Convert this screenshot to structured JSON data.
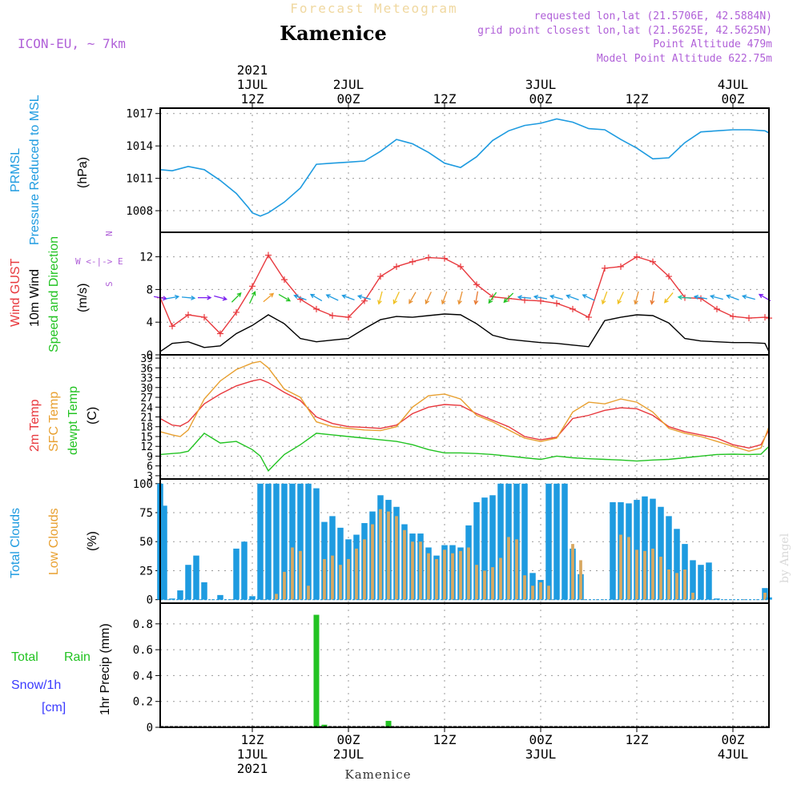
{
  "header": {
    "meteogram_title": "Forecast Meteogram",
    "location": "Kamenice",
    "model": "ICON-EU, ~ 7km",
    "requested": "requested lon,lat (21.5706E, 42.5884N)",
    "grid_point": "grid point closest lon,lat (21.5625E, 42.5625N)",
    "point_altitude": "Point Altitude 479m",
    "model_altitude": "Model Point Altitude 622.75m",
    "watermark": "by Angel",
    "footer_location": "Kamenice"
  },
  "time_axis": {
    "top_labels": [
      {
        "line1": "2021",
        "line2": "1JUL",
        "line3": "12Z",
        "hour": 12
      },
      {
        "line1": "",
        "line2": "2JUL",
        "line3": "00Z",
        "hour": 24
      },
      {
        "line1": "",
        "line2": "",
        "line3": "12Z",
        "hour": 36
      },
      {
        "line1": "",
        "line2": "3JUL",
        "line3": "00Z",
        "hour": 48
      },
      {
        "line1": "",
        "line2": "",
        "line3": "12Z",
        "hour": 60
      },
      {
        "line1": "",
        "line2": "4JUL",
        "line3": "00Z",
        "hour": 72
      }
    ],
    "bottom_labels": [
      {
        "line1": "12Z",
        "line2": "1JUL",
        "line3": "2021",
        "hour": 12
      },
      {
        "line1": "00Z",
        "line2": "2JUL",
        "line3": "",
        "hour": 24
      },
      {
        "line1": "12Z",
        "line2": "",
        "line3": "",
        "hour": 36
      },
      {
        "line1": "00Z",
        "line2": "3JUL",
        "line3": "",
        "hour": 48
      },
      {
        "line1": "12Z",
        "line2": "",
        "line3": "",
        "hour": 60
      },
      {
        "line1": "00Z",
        "line2": "4JUL",
        "line3": "",
        "hour": 72
      }
    ],
    "range_hours": [
      0.5,
      76.5
    ]
  },
  "chart_data": [
    {
      "type": "line",
      "panel": "pressure",
      "labels": [
        "PRMSL",
        "Pressure Reduced to MSL"
      ],
      "unit": "(hPa)",
      "color": "#1e9be0",
      "ylim": [
        1006,
        1017.5
      ],
      "yticks": [
        1008,
        1011,
        1014,
        1017
      ],
      "x": [
        0.5,
        2,
        4,
        6,
        8,
        10,
        11.5,
        12,
        13,
        14,
        16,
        18,
        20,
        22,
        24,
        26,
        28,
        30,
        32,
        34,
        36,
        38,
        40,
        42,
        44,
        46,
        48,
        50,
        52,
        54,
        56,
        58,
        60,
        62,
        64,
        66,
        68,
        70,
        72,
        74,
        76,
        76.5
      ],
      "y": [
        1011.8,
        1011.7,
        1012.1,
        1011.8,
        1010.8,
        1009.6,
        1008.3,
        1007.8,
        1007.5,
        1007.8,
        1008.8,
        1010.1,
        1012.3,
        1012.4,
        1012.5,
        1012.6,
        1013.5,
        1014.6,
        1014.2,
        1013.4,
        1012.4,
        1012.0,
        1013.0,
        1014.5,
        1015.4,
        1015.9,
        1016.1,
        1016.5,
        1016.2,
        1015.6,
        1015.5,
        1014.6,
        1013.8,
        1012.8,
        1012.9,
        1014.3,
        1015.3,
        1015.4,
        1015.5,
        1015.5,
        1015.4,
        1015.2
      ]
    },
    {
      "type": "line",
      "panel": "wind",
      "labels": [
        "Wind GUST",
        "10m Wind",
        "Speed and Direction"
      ],
      "label_colors": [
        "#e8383d",
        "#000000",
        "#22c322"
      ],
      "unit": "(m/s)",
      "ylim": [
        0,
        15
      ],
      "yticks": [
        0,
        4,
        8,
        12
      ],
      "compass": [
        "N",
        "W <-|-> E",
        "S"
      ],
      "x": [
        0.5,
        2,
        4,
        6,
        8,
        10,
        12,
        14,
        16,
        18,
        20,
        22,
        24,
        26,
        28,
        30,
        32,
        34,
        36,
        38,
        40,
        42,
        44,
        46,
        48,
        50,
        52,
        54,
        56,
        58,
        60,
        62,
        64,
        66,
        68,
        70,
        72,
        74,
        76,
        76.5
      ],
      "series": [
        {
          "name": "Wind GUST",
          "color": "#e8383d",
          "values": [
            7.0,
            3.5,
            4.9,
            4.6,
            2.6,
            5.2,
            8.4,
            12.2,
            9.2,
            6.8,
            5.6,
            4.8,
            4.6,
            6.6,
            9.6,
            10.8,
            11.4,
            11.9,
            11.8,
            10.8,
            8.6,
            7.1,
            6.9,
            6.7,
            6.6,
            6.3,
            5.6,
            4.6,
            10.6,
            10.8,
            12.0,
            11.4,
            9.6,
            7.0,
            6.9,
            5.6,
            4.7,
            4.5,
            4.6,
            4.5
          ]
        },
        {
          "name": "10m Wind",
          "color": "#000000",
          "values": [
            0.4,
            1.4,
            1.6,
            0.9,
            1.1,
            2.6,
            3.6,
            4.9,
            3.8,
            2.0,
            1.6,
            1.8,
            2.0,
            3.2,
            4.3,
            4.7,
            4.6,
            4.8,
            5.0,
            4.9,
            3.8,
            2.4,
            1.9,
            1.7,
            1.5,
            1.4,
            1.2,
            1.0,
            4.2,
            4.6,
            4.9,
            4.8,
            3.9,
            2.0,
            1.7,
            1.6,
            1.5,
            1.5,
            1.4,
            0.4
          ]
        }
      ],
      "arrows": {
        "hours": [
          0.5,
          2,
          4,
          6,
          8,
          10,
          12,
          14,
          16,
          18,
          20,
          22,
          24,
          26,
          28,
          30,
          32,
          34,
          36,
          38,
          40,
          42,
          44,
          46,
          48,
          50,
          52,
          54,
          56,
          58,
          60,
          62,
          64,
          66,
          68,
          70,
          72,
          74,
          76
        ],
        "direction_deg": [
          280,
          260,
          275,
          270,
          285,
          225,
          205,
          230,
          300,
          110,
          120,
          115,
          110,
          105,
          15,
          25,
          30,
          25,
          20,
          15,
          10,
          35,
          45,
          95,
          100,
          105,
          110,
          115,
          20,
          25,
          15,
          10,
          40,
          95,
          100,
          105,
          110,
          105,
          120
        ],
        "colors": [
          "#7a1ef0",
          "#1e9be0",
          "#1e9be0",
          "#7a1ef0",
          "#7a1ef0",
          "#22c322",
          "#22c322",
          "#f0a030",
          "#22c322",
          "#1e9be0",
          "#1e9be0",
          "#1e9be0",
          "#1e9be0",
          "#1e9be0",
          "#f0c020",
          "#f0c020",
          "#e89030",
          "#e89030",
          "#e89030",
          "#e89030",
          "#e87830",
          "#22c322",
          "#22c322",
          "#1e9be0",
          "#1e9be0",
          "#1e9be0",
          "#1e9be0",
          "#1e9be0",
          "#f0c020",
          "#f0c020",
          "#e89030",
          "#e87830",
          "#f0c020",
          "#1ec3a0",
          "#1e9be0",
          "#1e9be0",
          "#1e9be0",
          "#1e9be0",
          "#7a1ef0"
        ]
      }
    },
    {
      "type": "line",
      "panel": "temperature",
      "labels": [
        "2m Temp",
        "SFC Temp",
        "dewpt Temp"
      ],
      "label_colors": [
        "#e8383d",
        "#e8a030",
        "#22c322"
      ],
      "unit": "(C)",
      "ylim": [
        2,
        40
      ],
      "yticks": [
        3,
        6,
        9,
        12,
        15,
        18,
        21,
        24,
        27,
        30,
        33,
        36,
        39
      ],
      "x": [
        0.5,
        2,
        3,
        4,
        6,
        8,
        10,
        12,
        13,
        14,
        16,
        18,
        20,
        22,
        24,
        26,
        28,
        30,
        32,
        34,
        36,
        38,
        40,
        42,
        44,
        46,
        48,
        50,
        52,
        54,
        56,
        58,
        60,
        62,
        64,
        66,
        68,
        70,
        72,
        74,
        75.5,
        76.5
      ],
      "series": [
        {
          "name": "2m Temp",
          "color": "#e8383d",
          "values": [
            20.5,
            18.5,
            18.2,
            19.5,
            25.0,
            28.0,
            30.5,
            32.0,
            32.5,
            31.5,
            28.5,
            26.0,
            21.0,
            19.0,
            18.0,
            17.8,
            17.5,
            18.5,
            22.0,
            24.0,
            24.8,
            24.5,
            22.0,
            20.0,
            18.0,
            15.0,
            14.0,
            14.8,
            20.5,
            21.5,
            23.0,
            23.8,
            23.5,
            21.5,
            18.0,
            16.5,
            15.5,
            14.5,
            12.5,
            11.5,
            12.5,
            17.0
          ]
        },
        {
          "name": "SFC Temp",
          "color": "#e8a030",
          "values": [
            16.5,
            15.5,
            15.0,
            17.0,
            26.5,
            32.0,
            35.5,
            37.5,
            38.0,
            36.0,
            29.5,
            27.0,
            19.5,
            18.0,
            17.5,
            17.0,
            16.8,
            18.0,
            24.0,
            27.5,
            28.0,
            26.5,
            21.5,
            19.5,
            17.0,
            14.5,
            13.5,
            14.5,
            22.5,
            25.5,
            25.0,
            26.5,
            25.5,
            22.5,
            17.5,
            16.0,
            15.0,
            13.5,
            12.0,
            10.5,
            11.5,
            18.0
          ]
        },
        {
          "name": "dewpt Temp",
          "color": "#22c322",
          "values": [
            9.5,
            9.8,
            10.0,
            10.5,
            16.0,
            13.0,
            13.5,
            11.0,
            9.0,
            4.5,
            9.5,
            12.5,
            16.0,
            15.5,
            15.0,
            14.5,
            14.0,
            13.5,
            12.5,
            11.0,
            10.0,
            10.0,
            9.8,
            9.5,
            9.0,
            8.5,
            8.0,
            9.0,
            8.5,
            8.2,
            8.0,
            7.8,
            7.5,
            7.8,
            8.0,
            8.5,
            9.0,
            9.5,
            9.6,
            9.5,
            9.6,
            12.0
          ]
        }
      ]
    },
    {
      "type": "bar",
      "panel": "clouds",
      "labels": [
        "Total Clouds",
        "Low Clouds"
      ],
      "label_colors": [
        "#1e9be0",
        "#e8a030"
      ],
      "unit": "(%)",
      "ylim": [
        -3,
        104
      ],
      "yticks": [
        0,
        25,
        50,
        75,
        100
      ],
      "x": [
        0.5,
        1,
        2,
        3,
        4,
        5,
        6,
        7,
        8,
        9,
        10,
        11,
        12,
        13,
        14,
        15,
        16,
        17,
        18,
        19,
        20,
        21,
        22,
        23,
        24,
        25,
        26,
        27,
        28,
        29,
        30,
        31,
        32,
        33,
        34,
        35,
        36,
        37,
        38,
        39,
        40,
        41,
        42,
        43,
        44,
        45,
        46,
        47,
        48,
        49,
        50,
        51,
        52,
        53,
        54,
        55,
        56,
        57,
        58,
        59,
        60,
        61,
        62,
        63,
        64,
        65,
        66,
        67,
        68,
        69,
        70,
        71,
        72,
        73,
        74,
        75,
        76,
        76.5
      ],
      "series": [
        {
          "name": "Total Clouds",
          "color": "#1e9be0",
          "values": [
            100,
            81,
            1,
            8,
            30,
            38,
            15,
            0,
            4,
            0,
            44,
            50,
            3,
            100,
            100,
            100,
            100,
            100,
            100,
            100,
            96,
            67,
            72,
            62,
            52,
            56,
            66,
            76,
            90,
            86,
            80,
            65,
            57,
            57,
            45,
            38,
            47,
            47,
            45,
            64,
            84,
            88,
            90,
            100,
            100,
            100,
            100,
            23,
            17,
            100,
            100,
            100,
            44,
            22,
            0,
            0,
            0,
            84,
            84,
            83,
            86,
            89,
            87,
            80,
            72,
            61,
            48,
            34,
            30,
            32,
            1,
            0,
            0,
            0,
            0,
            0,
            10,
            2
          ]
        },
        {
          "name": "Low Clouds",
          "color": "#d8a860",
          "values": [
            0,
            0,
            0,
            0,
            0,
            0,
            0,
            0,
            0,
            0,
            0,
            0,
            0,
            0,
            0,
            5,
            24,
            45,
            42,
            12,
            0,
            35,
            38,
            30,
            35,
            44,
            52,
            65,
            78,
            76,
            72,
            60,
            50,
            50,
            40,
            35,
            43,
            40,
            42,
            45,
            30,
            25,
            28,
            36,
            54,
            52,
            21,
            12,
            15,
            12,
            0,
            0,
            48,
            34,
            0,
            0,
            0,
            0,
            56,
            54,
            43,
            42,
            44,
            37,
            26,
            23,
            26,
            6,
            0,
            0,
            0,
            0,
            0,
            0,
            0,
            0,
            6,
            0
          ]
        }
      ]
    },
    {
      "type": "bar",
      "panel": "precip",
      "labels": [
        "Total",
        "Rain",
        "Snow/1h",
        "[cm]"
      ],
      "label_colors": [
        "#22c322",
        "#22c322",
        "#3a3aff",
        "#3a3aff"
      ],
      "unit": "1hr Precip (mm)",
      "ylim": [
        0,
        0.96
      ],
      "yticks": [
        0,
        0.2,
        0.4,
        0.6,
        0.8
      ],
      "x": [
        20,
        21,
        29
      ],
      "series": [
        {
          "name": "Total Rain",
          "color": "#22c322",
          "values": [
            0.87,
            0.02,
            0.05
          ]
        }
      ]
    }
  ]
}
